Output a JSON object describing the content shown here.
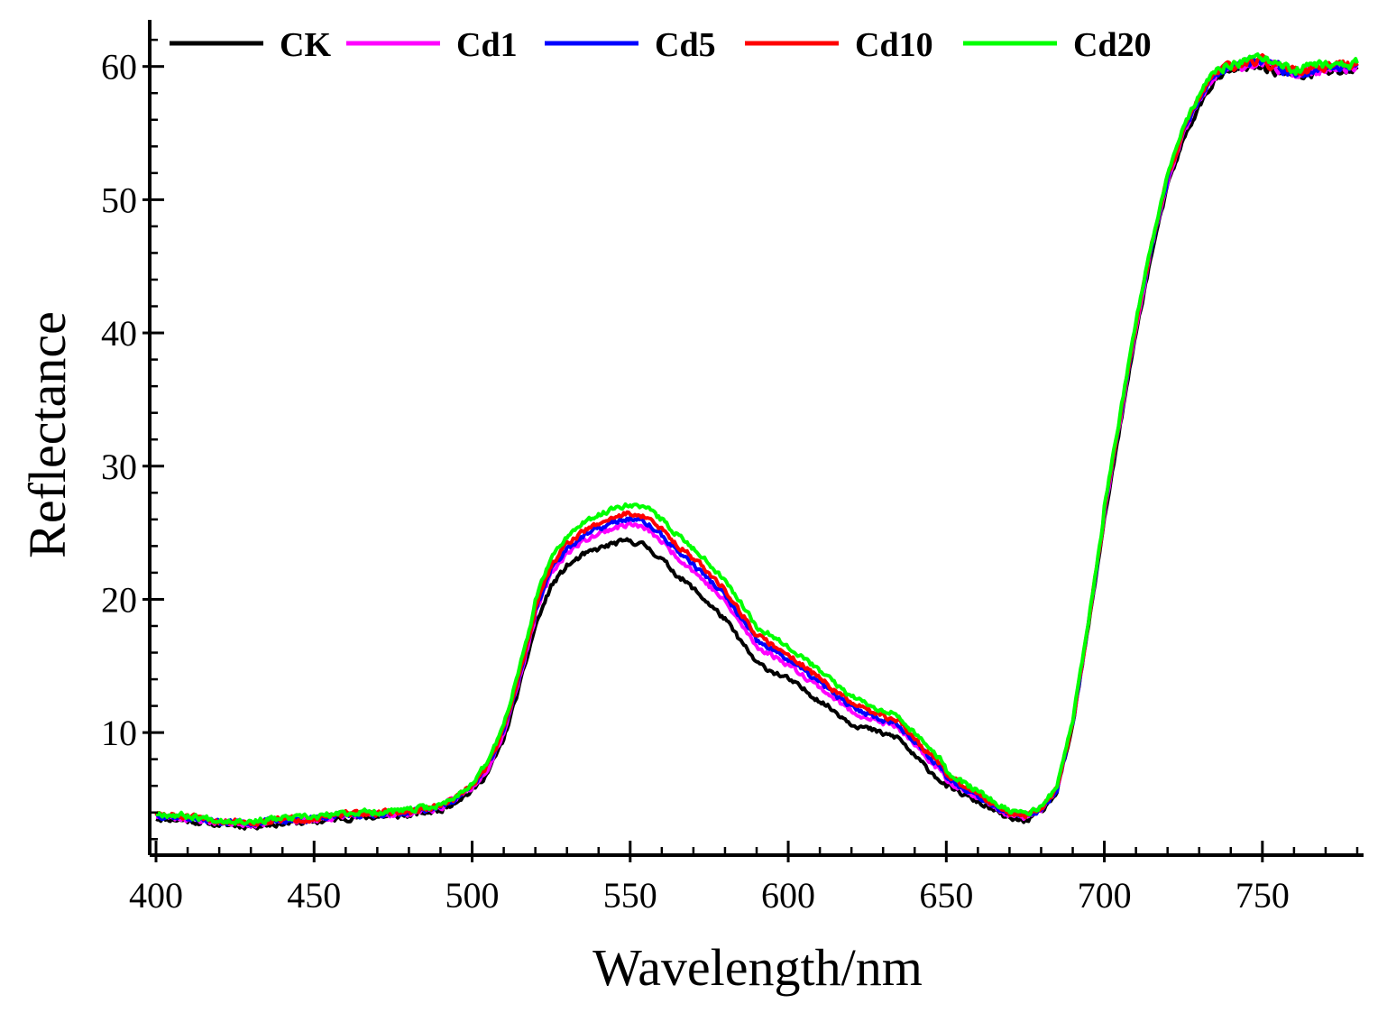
{
  "chart_data": {
    "type": "line",
    "title": "",
    "xlabel": "Wavelength/nm",
    "ylabel": "Reflectance",
    "xlim": [
      398,
      782
    ],
    "ylim": [
      0.8,
      63.5
    ],
    "xticks": [
      400,
      450,
      500,
      550,
      600,
      650,
      700,
      750
    ],
    "yticks": [
      10,
      20,
      30,
      40,
      50,
      60
    ],
    "xtick_labels": [
      "400",
      "450",
      "500",
      "550",
      "600",
      "650",
      "700",
      "750"
    ],
    "ytick_labels": [
      "10",
      "20",
      "30",
      "40",
      "50",
      "60"
    ],
    "grid": false,
    "legend_position": "top",
    "base_curve": {
      "x": [
        400,
        410,
        420,
        430,
        440,
        450,
        460,
        470,
        480,
        490,
        500,
        505,
        510,
        515,
        520,
        525,
        530,
        535,
        540,
        545,
        550,
        555,
        560,
        565,
        570,
        580,
        590,
        600,
        610,
        620,
        630,
        635,
        640,
        650,
        660,
        670,
        675,
        680,
        685,
        690,
        695,
        700,
        705,
        710,
        715,
        720,
        725,
        730,
        735,
        740,
        750,
        760,
        770,
        780
      ],
      "y": [
        3.6,
        3.4,
        3.1,
        3.0,
        3.2,
        3.3,
        3.6,
        3.7,
        3.8,
        4.2,
        5.6,
        7.0,
        9.5,
        13.5,
        18.0,
        21.0,
        22.5,
        23.3,
        23.8,
        24.2,
        24.4,
        24.0,
        23.0,
        21.8,
        20.8,
        18.5,
        15.2,
        14.0,
        12.4,
        10.7,
        9.9,
        9.6,
        8.2,
        6.0,
        4.8,
        3.5,
        3.4,
        4.0,
        5.5,
        10.5,
        18.0,
        26.0,
        33.0,
        40.0,
        46.0,
        51.0,
        54.5,
        57.0,
        59.0,
        59.7,
        60.0,
        59.2,
        59.6,
        59.7
      ]
    },
    "series": [
      {
        "name": "CK",
        "color": "#000000",
        "offset_scale": 0.0,
        "noise_seed": 11
      },
      {
        "name": "Cd1",
        "color": "#ff00ff",
        "offset_scale": 0.45,
        "noise_seed": 23
      },
      {
        "name": "Cd5",
        "color": "#0000ff",
        "offset_scale": 0.6,
        "noise_seed": 37
      },
      {
        "name": "Cd10",
        "color": "#ff0000",
        "offset_scale": 0.75,
        "noise_seed": 51
      },
      {
        "name": "Cd20",
        "color": "#00ff00",
        "offset_scale": 1.0,
        "noise_seed": 67
      }
    ]
  }
}
